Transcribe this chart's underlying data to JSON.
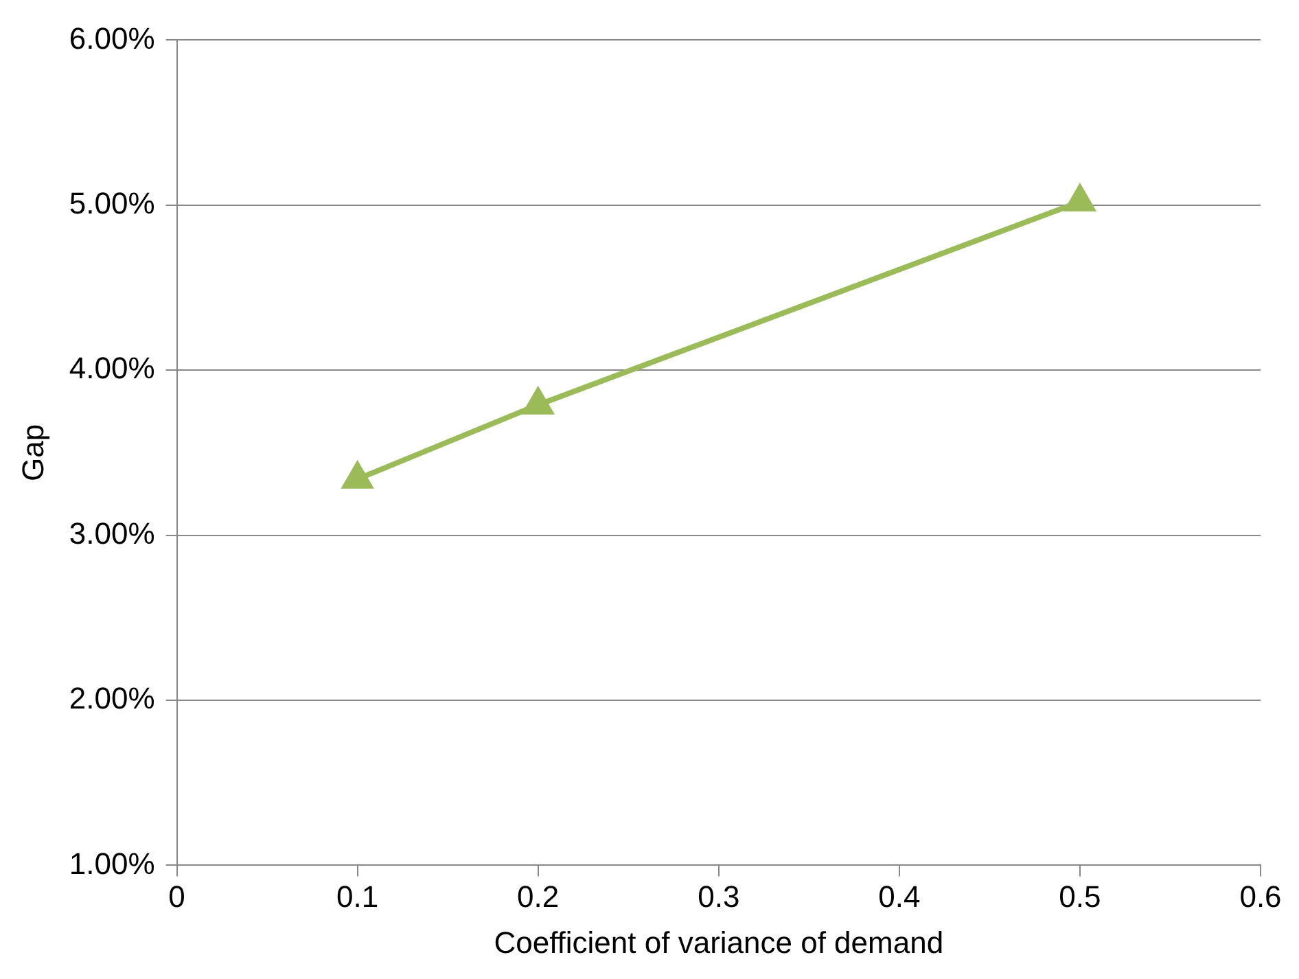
{
  "chart_data": {
    "type": "line",
    "xlabel": "Coefficient of variance of demand",
    "ylabel": "Gap",
    "x": [
      0.1,
      0.2,
      0.5
    ],
    "series": [
      {
        "color": "#9bbb59",
        "values": [
          3.34,
          3.79,
          5.02
        ]
      }
    ],
    "xlim": [
      0,
      0.6
    ],
    "xticks": [
      0,
      0.1,
      0.2,
      0.3,
      0.4,
      0.5,
      0.6
    ],
    "ylim": [
      1,
      6
    ],
    "yticks": [
      {
        "value": 1,
        "label": "1.00%"
      },
      {
        "value": 2,
        "label": "2.00%"
      },
      {
        "value": 3,
        "label": "3.00%"
      },
      {
        "value": 4,
        "label": "4.00%"
      },
      {
        "value": 5,
        "label": "5.00%"
      },
      {
        "value": 6,
        "label": "6.00%"
      }
    ],
    "grid": "y",
    "legend": false,
    "marker": "triangle",
    "line_style": "solid"
  }
}
